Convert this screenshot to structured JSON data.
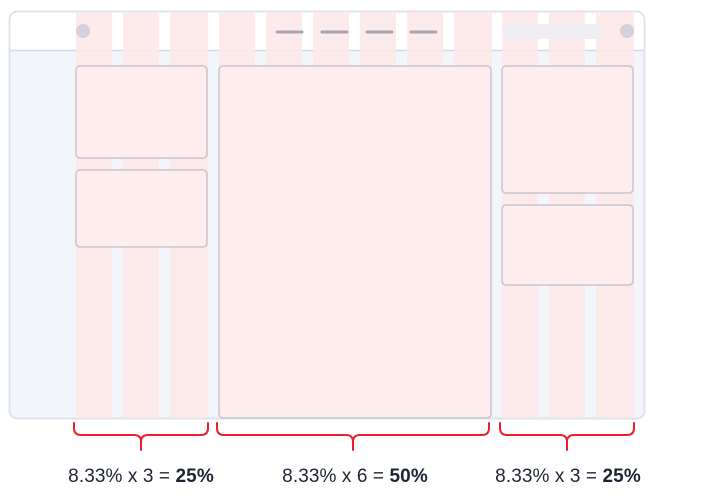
{
  "layout_labels": [
    {
      "formula": "8.33% x 3 = ",
      "result": "25%"
    },
    {
      "formula": "8.33% x 6 = ",
      "result": "50%"
    },
    {
      "formula": "8.33% x 3 = ",
      "result": "25%"
    }
  ],
  "colors": {
    "window_bg": "#f2f5f9",
    "window_border": "#dfe3ea",
    "column": "#fde8e8",
    "card_fill": "#fdeded",
    "card_border": "#c9c4cf",
    "dot": "#d6d0dc",
    "nav_line": "#a7a5b3",
    "search_pill": "#eeeef2",
    "bracket": "#e8212a",
    "text": "#1e2433"
  }
}
